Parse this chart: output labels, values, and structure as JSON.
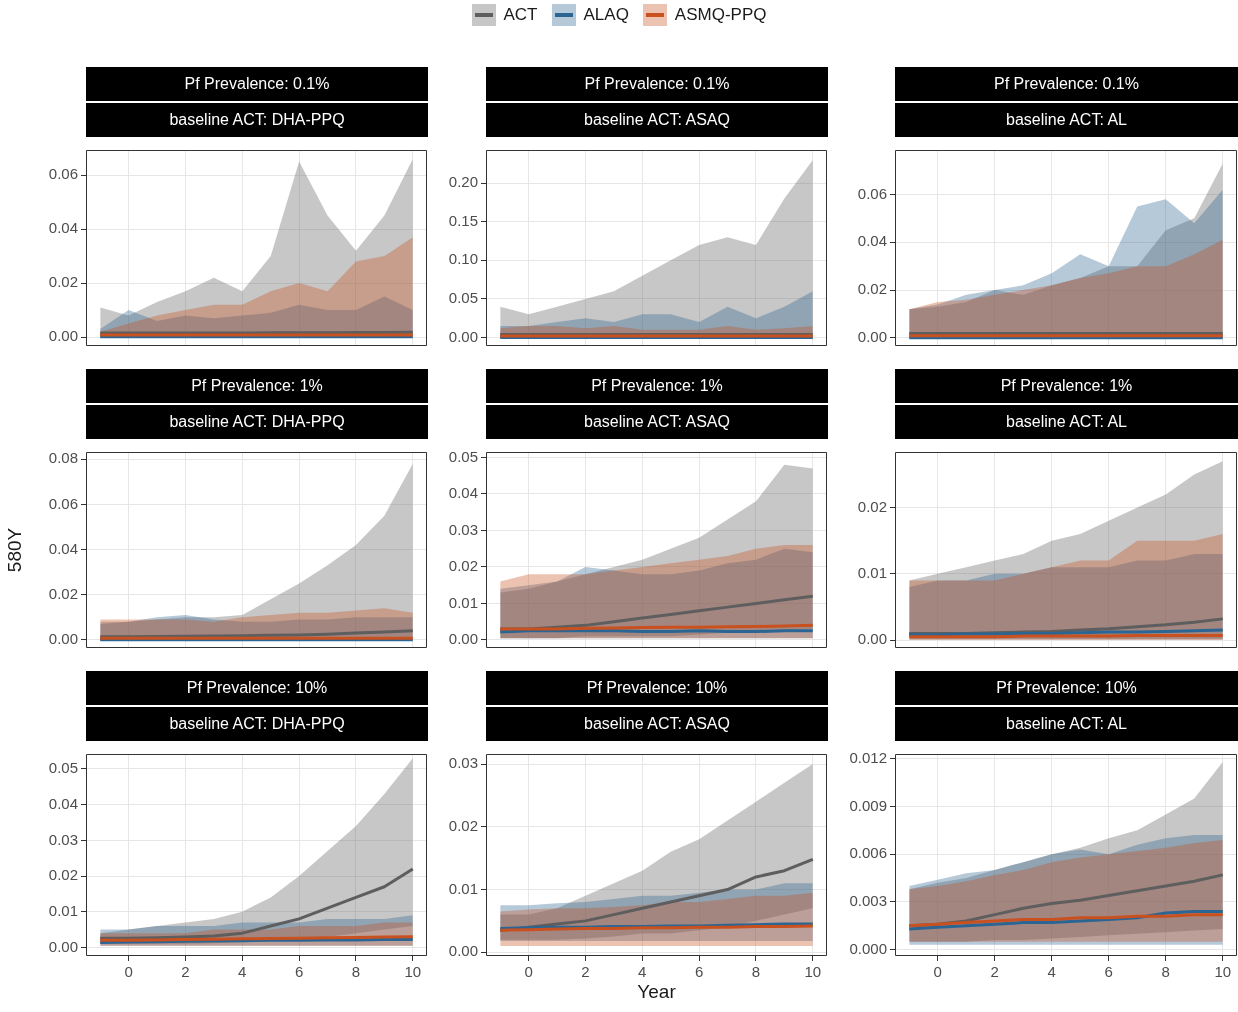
{
  "chart_data": [
    {
      "type": "line",
      "title": "Pf Prevalence: 0.1%",
      "subtitle": "baseline ACT: DHA-PPQ",
      "legend": "top",
      "marker": "none",
      "grid": true,
      "tick_labels": "y",
      "x": [
        -1,
        0,
        1,
        2,
        3,
        4,
        5,
        6,
        7,
        8,
        9,
        10
      ],
      "xlim": [
        -1.5,
        10.5
      ],
      "xticks": [
        0,
        2,
        4,
        6,
        8,
        10
      ],
      "ylim": [
        -0.0033,
        0.0693
      ],
      "yticks": [
        {
          "value": 0,
          "label": "0.00"
        },
        {
          "value": 0.02,
          "label": "0.02"
        },
        {
          "value": 0.04,
          "label": "0.04"
        },
        {
          "value": 0.06,
          "label": "0.06"
        }
      ],
      "series": [
        {
          "name": "ACT",
          "color": "#5e5e5e",
          "values": [
            0.0015,
            0.0015,
            0.0015,
            0.0015,
            0.0015,
            0.0015,
            0.0016,
            0.0016,
            0.0016,
            0.0017,
            0.0017,
            0.0018
          ],
          "lower": [
            0,
            0,
            0,
            0,
            0,
            0,
            0,
            0,
            0,
            0,
            0,
            0
          ],
          "upper": [
            0.011,
            0.008,
            0.013,
            0.017,
            0.022,
            0.017,
            0.03,
            0.065,
            0.045,
            0.032,
            0.045,
            0.066
          ]
        },
        {
          "name": "ALAQ",
          "color": "#2b6593",
          "values": [
            0.0001,
            0.0001,
            0.0001,
            0.0001,
            0.0001,
            0.0001,
            0.0001,
            0.0001,
            0.0001,
            0.0001,
            0.0001,
            0.0001
          ],
          "lower": [
            0,
            0,
            0,
            0,
            0,
            0,
            0,
            0,
            0,
            0,
            0,
            0
          ],
          "upper": [
            0.003,
            0.01,
            0.006,
            0.008,
            0.007,
            0.008,
            0.009,
            0.012,
            0.01,
            0.01,
            0.015,
            0.01
          ]
        },
        {
          "name": "ASMQ-PPQ",
          "color": "#c9501f",
          "values": [
            0.0008,
            0.0008,
            0.0008,
            0.0008,
            0.0008,
            0.0008,
            0.0008,
            0.0008,
            0.0008,
            0.0008,
            0.0008,
            0.0008
          ],
          "lower": [
            0,
            0,
            0,
            0,
            0,
            0,
            0,
            0,
            0,
            0,
            0,
            0
          ],
          "upper": [
            0.002,
            0.005,
            0.008,
            0.01,
            0.012,
            0.012,
            0.017,
            0.02,
            0.017,
            0.028,
            0.03,
            0.037
          ]
        }
      ]
    },
    {
      "type": "line",
      "title": "Pf Prevalence: 0.1%",
      "subtitle": "baseline ACT: ASAQ",
      "marker": "none",
      "grid": true,
      "tick_labels": "y",
      "x": [
        -1,
        0,
        1,
        2,
        3,
        4,
        5,
        6,
        7,
        8,
        9,
        10
      ],
      "xlim": [
        -1.5,
        10.5
      ],
      "xticks": [
        0,
        2,
        4,
        6,
        8,
        10
      ],
      "ylim": [
        -0.011,
        0.243
      ],
      "yticks": [
        {
          "value": 0,
          "label": "0.00"
        },
        {
          "value": 0.05,
          "label": "0.05"
        },
        {
          "value": 0.1,
          "label": "0.10"
        },
        {
          "value": 0.15,
          "label": "0.15"
        },
        {
          "value": 0.2,
          "label": "0.20"
        }
      ],
      "series": [
        {
          "name": "ACT",
          "color": "#5e5e5e",
          "values": [
            0.004,
            0.004,
            0.004,
            0.004,
            0.004,
            0.004,
            0.004,
            0.004,
            0.004,
            0.004,
            0.004,
            0.004
          ],
          "lower": [
            0,
            0,
            0,
            0,
            0,
            0,
            0,
            0,
            0,
            0,
            0,
            0
          ],
          "upper": [
            0.04,
            0.03,
            0.04,
            0.05,
            0.06,
            0.08,
            0.1,
            0.12,
            0.13,
            0.12,
            0.18,
            0.23
          ]
        },
        {
          "name": "ALAQ",
          "color": "#2b6593",
          "values": [
            0,
            0,
            0,
            0,
            0,
            0,
            0,
            0,
            0,
            0,
            0,
            0
          ],
          "lower": [
            0,
            0,
            0,
            0,
            0,
            0,
            0,
            0,
            0,
            0,
            0,
            0
          ],
          "upper": [
            0.015,
            0.015,
            0.02,
            0.025,
            0.02,
            0.03,
            0.03,
            0.02,
            0.04,
            0.025,
            0.04,
            0.06
          ]
        },
        {
          "name": "ASMQ-PPQ",
          "color": "#c9501f",
          "values": [
            0.002,
            0.002,
            0.002,
            0.002,
            0.002,
            0.002,
            0.002,
            0.002,
            0.002,
            0.002,
            0.002,
            0.002
          ],
          "lower": [
            0,
            0,
            0,
            0,
            0,
            0,
            0,
            0,
            0,
            0,
            0,
            0
          ],
          "upper": [
            0.012,
            0.015,
            0.015,
            0.012,
            0.015,
            0.01,
            0.01,
            0.01,
            0.015,
            0.01,
            0.012,
            0.015
          ]
        }
      ]
    },
    {
      "type": "line",
      "title": "Pf Prevalence: 0.1%",
      "subtitle": "baseline ACT: AL",
      "marker": "none",
      "grid": true,
      "tick_labels": "y",
      "x": [
        -1,
        0,
        1,
        2,
        3,
        4,
        5,
        6,
        7,
        8,
        9,
        10
      ],
      "xlim": [
        -1.5,
        10.5
      ],
      "xticks": [
        0,
        2,
        4,
        6,
        8,
        10
      ],
      "ylim": [
        -0.0034,
        0.0786
      ],
      "yticks": [
        {
          "value": 0,
          "label": "0.00"
        },
        {
          "value": 0.02,
          "label": "0.02"
        },
        {
          "value": 0.04,
          "label": "0.04"
        },
        {
          "value": 0.06,
          "label": "0.06"
        }
      ],
      "series": [
        {
          "name": "ACT",
          "color": "#5e5e5e",
          "values": [
            0.0018,
            0.0018,
            0.0018,
            0.0018,
            0.0018,
            0.0018,
            0.0018,
            0.0018,
            0.0018,
            0.0018,
            0.0018,
            0.0018
          ],
          "lower": [
            0,
            0,
            0,
            0,
            0,
            0,
            0,
            0,
            0,
            0,
            0,
            0
          ],
          "upper": [
            0.012,
            0.013,
            0.015,
            0.02,
            0.018,
            0.022,
            0.025,
            0.03,
            0.03,
            0.045,
            0.05,
            0.073
          ]
        },
        {
          "name": "ALAQ",
          "color": "#2b6593",
          "values": [
            0.0001,
            0.0001,
            0.0001,
            0.0001,
            0.0001,
            0.0001,
            0.0001,
            0.0001,
            0.0001,
            0.0001,
            0.0001,
            0.0001
          ],
          "lower": [
            0,
            0,
            0,
            0,
            0,
            0,
            0,
            0,
            0,
            0,
            0,
            0
          ],
          "upper": [
            0.012,
            0.014,
            0.018,
            0.02,
            0.022,
            0.027,
            0.035,
            0.03,
            0.055,
            0.058,
            0.048,
            0.062
          ]
        },
        {
          "name": "ASMQ-PPQ",
          "color": "#c9501f",
          "values": [
            0.0009,
            0.0009,
            0.0009,
            0.0009,
            0.0009,
            0.0009,
            0.0009,
            0.0009,
            0.0009,
            0.0009,
            0.0009,
            0.0009
          ],
          "lower": [
            0,
            0,
            0,
            0,
            0,
            0,
            0,
            0,
            0,
            0,
            0,
            0
          ],
          "upper": [
            0.012,
            0.015,
            0.016,
            0.018,
            0.02,
            0.022,
            0.025,
            0.027,
            0.03,
            0.03,
            0.035,
            0.041
          ]
        }
      ]
    },
    {
      "type": "line",
      "title": "Pf Prevalence: 1%",
      "subtitle": "baseline ACT: DHA-PPQ",
      "ylabel": "580Y",
      "marker": "none",
      "grid": true,
      "tick_labels": "y",
      "x": [
        -1,
        0,
        1,
        2,
        3,
        4,
        5,
        6,
        7,
        8,
        9,
        10
      ],
      "xlim": [
        -1.5,
        10.5
      ],
      "xticks": [
        0,
        2,
        4,
        6,
        8,
        10
      ],
      "ylim": [
        -0.0036,
        0.0832
      ],
      "yticks": [
        {
          "value": 0,
          "label": "0.00"
        },
        {
          "value": 0.02,
          "label": "0.02"
        },
        {
          "value": 0.04,
          "label": "0.04"
        },
        {
          "value": 0.06,
          "label": "0.06"
        },
        {
          "value": 0.08,
          "label": "0.08"
        }
      ],
      "series": [
        {
          "name": "ACT",
          "color": "#5e5e5e",
          "values": [
            0.0014,
            0.0014,
            0.0015,
            0.0016,
            0.0017,
            0.0018,
            0.002,
            0.0022,
            0.0025,
            0.003,
            0.0035,
            0.004
          ],
          "lower": [
            0,
            0,
            0,
            0,
            0,
            0,
            0,
            0,
            0,
            0,
            0,
            0
          ],
          "upper": [
            0.008,
            0.008,
            0.009,
            0.01,
            0.01,
            0.011,
            0.018,
            0.025,
            0.033,
            0.042,
            0.055,
            0.078
          ]
        },
        {
          "name": "ALAQ",
          "color": "#2b6593",
          "values": [
            0,
            0,
            0,
            0,
            0,
            0,
            0,
            0,
            0,
            0,
            0,
            0
          ],
          "lower": [
            0,
            0,
            0,
            0,
            0,
            0,
            0,
            0,
            0,
            0,
            0,
            0
          ],
          "upper": [
            0.007,
            0.008,
            0.01,
            0.011,
            0.009,
            0.008,
            0.008,
            0.009,
            0.009,
            0.01,
            0.01,
            0.01
          ]
        },
        {
          "name": "ASMQ-PPQ",
          "color": "#c9501f",
          "values": [
            0.0007,
            0.0007,
            0.0007,
            0.0007,
            0.0007,
            0.0007,
            0.0007,
            0.0007,
            0.0007,
            0.0007,
            0.0007,
            0.0007
          ],
          "lower": [
            0,
            0,
            0,
            0,
            0,
            0,
            0,
            0,
            0,
            0,
            0,
            0
          ],
          "upper": [
            0.009,
            0.009,
            0.009,
            0.009,
            0.008,
            0.01,
            0.011,
            0.012,
            0.012,
            0.013,
            0.014,
            0.012
          ]
        }
      ]
    },
    {
      "type": "line",
      "title": "Pf Prevalence: 1%",
      "subtitle": "baseline ACT: ASAQ",
      "marker": "none",
      "grid": true,
      "tick_labels": "y",
      "x": [
        -1,
        0,
        1,
        2,
        3,
        4,
        5,
        6,
        7,
        8,
        9,
        10
      ],
      "xlim": [
        -1.5,
        10.5
      ],
      "xticks": [
        0,
        2,
        4,
        6,
        8,
        10
      ],
      "ylim": [
        -0.0022,
        0.0515
      ],
      "yticks": [
        {
          "value": 0,
          "label": "0.00"
        },
        {
          "value": 0.01,
          "label": "0.01"
        },
        {
          "value": 0.02,
          "label": "0.02"
        },
        {
          "value": 0.03,
          "label": "0.03"
        },
        {
          "value": 0.04,
          "label": "0.04"
        },
        {
          "value": 0.05,
          "label": "0.05"
        }
      ],
      "series": [
        {
          "name": "ACT",
          "color": "#5e5e5e",
          "values": [
            0.003,
            0.003,
            0.0035,
            0.004,
            0.005,
            0.006,
            0.007,
            0.008,
            0.009,
            0.01,
            0.011,
            0.012
          ],
          "lower": [
            0.0005,
            0.0005,
            0.0005,
            0.001,
            0.001,
            0.001,
            0.001,
            0.0015,
            0.002,
            0.002,
            0.0025,
            0.003
          ],
          "upper": [
            0.013,
            0.014,
            0.016,
            0.018,
            0.02,
            0.022,
            0.025,
            0.028,
            0.033,
            0.038,
            0.048,
            0.047
          ]
        },
        {
          "name": "ALAQ",
          "color": "#2b6593",
          "values": [
            0.0022,
            0.0025,
            0.0025,
            0.0025,
            0.0025,
            0.0023,
            0.0023,
            0.0025,
            0.0023,
            0.0023,
            0.0025,
            0.0025
          ],
          "lower": [
            0.0005,
            0.0005,
            0.0005,
            0.0005,
            0.0005,
            0.0005,
            0.0005,
            0.0005,
            0.0005,
            0.0005,
            0.0005,
            0.0005
          ],
          "upper": [
            0.014,
            0.015,
            0.016,
            0.02,
            0.019,
            0.018,
            0.018,
            0.019,
            0.021,
            0.022,
            0.025,
            0.024
          ]
        },
        {
          "name": "ASMQ-PPQ",
          "color": "#c9501f",
          "values": [
            0.003,
            0.003,
            0.003,
            0.0032,
            0.0033,
            0.0034,
            0.0035,
            0.0035,
            0.0036,
            0.0037,
            0.0038,
            0.004
          ],
          "lower": [
            0.0005,
            0.0005,
            0.0005,
            0.0005,
            0.0005,
            0.0005,
            0.0005,
            0.0005,
            0.0005,
            0.0005,
            0.0005,
            0.0005
          ],
          "upper": [
            0.016,
            0.018,
            0.018,
            0.018,
            0.019,
            0.02,
            0.021,
            0.022,
            0.023,
            0.025,
            0.026,
            0.026
          ]
        }
      ]
    },
    {
      "type": "line",
      "title": "Pf Prevalence: 1%",
      "subtitle": "baseline ACT: AL",
      "marker": "none",
      "grid": true,
      "tick_labels": "y",
      "x": [
        -1,
        0,
        1,
        2,
        3,
        4,
        5,
        6,
        7,
        8,
        9,
        10
      ],
      "xlim": [
        -1.5,
        10.5
      ],
      "xticks": [
        0,
        2,
        4,
        6,
        8,
        10
      ],
      "ylim": [
        -0.0012,
        0.0284
      ],
      "yticks": [
        {
          "value": 0,
          "label": "0.00"
        },
        {
          "value": 0.01,
          "label": "0.01"
        },
        {
          "value": 0.02,
          "label": "0.02"
        }
      ],
      "series": [
        {
          "name": "ACT",
          "color": "#5e5e5e",
          "values": [
            0.001,
            0.001,
            0.001,
            0.0011,
            0.0012,
            0.0013,
            0.0015,
            0.0017,
            0.002,
            0.0023,
            0.0027,
            0.0032
          ],
          "lower": [
            0.0002,
            0.0002,
            0.0002,
            0.0002,
            0.0002,
            0.0002,
            0.0002,
            0.0002,
            0.0002,
            0.0002,
            0.0002,
            0.0002
          ],
          "upper": [
            0.009,
            0.01,
            0.011,
            0.012,
            0.013,
            0.015,
            0.016,
            0.018,
            0.02,
            0.022,
            0.025,
            0.027
          ]
        },
        {
          "name": "ALAQ",
          "color": "#2b6593",
          "values": [
            0.0008,
            0.0008,
            0.0009,
            0.0009,
            0.001,
            0.001,
            0.0011,
            0.0012,
            0.0012,
            0.0013,
            0.0014,
            0.0015
          ],
          "lower": [
            0.0001,
            0.0001,
            0.0001,
            0.0001,
            0.0001,
            0.0001,
            0.0001,
            0.0001,
            0.0001,
            0.0001,
            0.0001,
            0.0001
          ],
          "upper": [
            0.008,
            0.009,
            0.009,
            0.01,
            0.01,
            0.011,
            0.011,
            0.011,
            0.012,
            0.012,
            0.013,
            0.013
          ]
        },
        {
          "name": "ASMQ-PPQ",
          "color": "#c9501f",
          "values": [
            0.0005,
            0.0005,
            0.0005,
            0.0005,
            0.0006,
            0.0006,
            0.0006,
            0.0006,
            0.0007,
            0.0007,
            0.0007,
            0.0007
          ],
          "lower": [
            0,
            0,
            0,
            0,
            0,
            0,
            0,
            0,
            0,
            0,
            0,
            0
          ],
          "upper": [
            0.009,
            0.009,
            0.009,
            0.009,
            0.01,
            0.011,
            0.012,
            0.012,
            0.015,
            0.015,
            0.015,
            0.016
          ]
        }
      ]
    },
    {
      "type": "line",
      "title": "Pf Prevalence: 10%",
      "subtitle": "baseline ACT: DHA-PPQ",
      "marker": "none",
      "grid": true,
      "x": [
        -1,
        0,
        1,
        2,
        3,
        4,
        5,
        6,
        7,
        8,
        9,
        10
      ],
      "xlim": [
        -1.5,
        10.5
      ],
      "xticks": [
        0,
        2,
        4,
        6,
        8,
        10
      ],
      "ylim": [
        -0.0024,
        0.0542
      ],
      "yticks": [
        {
          "value": 0,
          "label": "0.00"
        },
        {
          "value": 0.01,
          "label": "0.01"
        },
        {
          "value": 0.02,
          "label": "0.02"
        },
        {
          "value": 0.03,
          "label": "0.03"
        },
        {
          "value": 0.04,
          "label": "0.04"
        },
        {
          "value": 0.05,
          "label": "0.05"
        }
      ],
      "series": [
        {
          "name": "ACT",
          "color": "#5e5e5e",
          "values": [
            0.0026,
            0.0026,
            0.0027,
            0.0029,
            0.0032,
            0.004,
            0.006,
            0.008,
            0.011,
            0.014,
            0.017,
            0.022
          ],
          "lower": [
            0.001,
            0.001,
            0.001,
            0.001,
            0.0012,
            0.0015,
            0.002,
            0.002,
            0.003,
            0.004,
            0.005,
            0.006
          ],
          "upper": [
            0.004,
            0.005,
            0.006,
            0.007,
            0.008,
            0.01,
            0.014,
            0.02,
            0.027,
            0.034,
            0.043,
            0.053
          ]
        },
        {
          "name": "ALAQ",
          "color": "#2b6593",
          "values": [
            0.0014,
            0.0015,
            0.0016,
            0.0017,
            0.0018,
            0.0019,
            0.002,
            0.002,
            0.0021,
            0.0021,
            0.0022,
            0.0022
          ],
          "lower": [
            0.0005,
            0.0005,
            0.0005,
            0.0005,
            0.0005,
            0.0005,
            0.0005,
            0.0005,
            0.0005,
            0.0005,
            0.0005,
            0.0005
          ],
          "upper": [
            0.005,
            0.005,
            0.006,
            0.006,
            0.006,
            0.007,
            0.007,
            0.007,
            0.008,
            0.008,
            0.008,
            0.009
          ]
        },
        {
          "name": "ASMQ-PPQ",
          "color": "#c9501f",
          "values": [
            0.002,
            0.002,
            0.0021,
            0.0022,
            0.0023,
            0.0024,
            0.0025,
            0.0026,
            0.0027,
            0.0028,
            0.0029,
            0.003
          ],
          "lower": [
            0.0005,
            0.0005,
            0.0005,
            0.0005,
            0.0005,
            0.0005,
            0.0005,
            0.0005,
            0.0005,
            0.0005,
            0.0005,
            0.0005
          ],
          "upper": [
            0.004,
            0.004,
            0.004,
            0.004,
            0.005,
            0.005,
            0.005,
            0.006,
            0.006,
            0.006,
            0.007,
            0.007
          ]
        }
      ]
    },
    {
      "type": "line",
      "title": "Pf Prevalence: 10%",
      "subtitle": "baseline ACT: ASAQ",
      "xlabel": "Year",
      "marker": "none",
      "grid": true,
      "x": [
        -1,
        0,
        1,
        2,
        3,
        4,
        5,
        6,
        7,
        8,
        9,
        10
      ],
      "xlim": [
        -1.5,
        10.5
      ],
      "xticks": [
        0,
        2,
        4,
        6,
        8,
        10
      ],
      "ylim": [
        -0.0006,
        0.0316
      ],
      "yticks": [
        {
          "value": 0,
          "label": "0.00"
        },
        {
          "value": 0.01,
          "label": "0.01"
        },
        {
          "value": 0.02,
          "label": "0.02"
        },
        {
          "value": 0.03,
          "label": "0.03"
        }
      ],
      "series": [
        {
          "name": "ACT",
          "color": "#5e5e5e",
          "values": [
            0.0035,
            0.004,
            0.0045,
            0.005,
            0.006,
            0.007,
            0.008,
            0.009,
            0.01,
            0.012,
            0.013,
            0.0148
          ],
          "lower": [
            0.002,
            0.002,
            0.002,
            0.0022,
            0.0025,
            0.003,
            0.003,
            0.0035,
            0.004,
            0.005,
            0.006,
            0.007
          ],
          "upper": [
            0.006,
            0.006,
            0.007,
            0.009,
            0.011,
            0.013,
            0.016,
            0.018,
            0.021,
            0.024,
            0.027,
            0.03
          ]
        },
        {
          "name": "ALAQ",
          "color": "#2b6593",
          "values": [
            0.0038,
            0.0039,
            0.004,
            0.004,
            0.0041,
            0.0041,
            0.0042,
            0.0042,
            0.0043,
            0.0044,
            0.0045,
            0.0045
          ],
          "lower": [
            0.0018,
            0.0018,
            0.0018,
            0.0018,
            0.0018,
            0.0018,
            0.0018,
            0.0018,
            0.0018,
            0.0018,
            0.0018,
            0.0018
          ],
          "upper": [
            0.0075,
            0.0075,
            0.0078,
            0.008,
            0.0085,
            0.009,
            0.009,
            0.0095,
            0.01,
            0.01,
            0.011,
            0.011
          ]
        },
        {
          "name": "ASMQ-PPQ",
          "color": "#c9501f",
          "values": [
            0.0035,
            0.0036,
            0.0037,
            0.0038,
            0.0038,
            0.0039,
            0.0039,
            0.004,
            0.004,
            0.0041,
            0.0041,
            0.0042
          ],
          "lower": [
            0.001,
            0.001,
            0.001,
            0.001,
            0.001,
            0.001,
            0.001,
            0.001,
            0.001,
            0.001,
            0.001,
            0.001
          ],
          "upper": [
            0.0065,
            0.0068,
            0.007,
            0.007,
            0.0072,
            0.0075,
            0.008,
            0.008,
            0.0085,
            0.009,
            0.009,
            0.0095
          ]
        }
      ]
    },
    {
      "type": "line",
      "title": "Pf Prevalence: 10%",
      "subtitle": "baseline ACT: AL",
      "marker": "none",
      "grid": true,
      "x": [
        -1,
        0,
        1,
        2,
        3,
        4,
        5,
        6,
        7,
        8,
        9,
        10
      ],
      "xlim": [
        -1.5,
        10.5
      ],
      "xticks": [
        0,
        2,
        4,
        6,
        8,
        10
      ],
      "ylim": [
        -0.0004,
        0.0123
      ],
      "yticks": [
        {
          "value": 0,
          "label": "0.000"
        },
        {
          "value": 0.003,
          "label": "0.003"
        },
        {
          "value": 0.006,
          "label": "0.006"
        },
        {
          "value": 0.009,
          "label": "0.009"
        },
        {
          "value": 0.012,
          "label": "0.012"
        }
      ],
      "series": [
        {
          "name": "ACT",
          "color": "#5e5e5e",
          "values": [
            0.0015,
            0.0016,
            0.0018,
            0.0022,
            0.0026,
            0.0029,
            0.0031,
            0.0034,
            0.0037,
            0.004,
            0.0043,
            0.0047
          ],
          "lower": [
            0.0005,
            0.0005,
            0.0005,
            0.0006,
            0.0006,
            0.0007,
            0.0008,
            0.0009,
            0.001,
            0.0011,
            0.0012,
            0.0013
          ],
          "upper": [
            0.0038,
            0.0042,
            0.0045,
            0.005,
            0.0055,
            0.006,
            0.0064,
            0.007,
            0.0075,
            0.0085,
            0.0095,
            0.0118
          ]
        },
        {
          "name": "ALAQ",
          "color": "#2b6593",
          "values": [
            0.0013,
            0.0014,
            0.0015,
            0.0016,
            0.0017,
            0.0017,
            0.0018,
            0.0019,
            0.002,
            0.0023,
            0.0024,
            0.0024
          ],
          "lower": [
            0.0003,
            0.0003,
            0.0003,
            0.0003,
            0.0003,
            0.0003,
            0.0003,
            0.0003,
            0.0003,
            0.0003,
            0.0003,
            0.0003
          ],
          "upper": [
            0.004,
            0.0044,
            0.0048,
            0.005,
            0.0055,
            0.006,
            0.0063,
            0.006,
            0.0066,
            0.007,
            0.0072,
            0.0072
          ]
        },
        {
          "name": "ASMQ-PPQ",
          "color": "#c9501f",
          "values": [
            0.0015,
            0.0016,
            0.0017,
            0.0018,
            0.0019,
            0.0019,
            0.002,
            0.002,
            0.0021,
            0.0021,
            0.0022,
            0.0022
          ],
          "lower": [
            0.0005,
            0.0005,
            0.0005,
            0.0005,
            0.0005,
            0.0005,
            0.0005,
            0.0005,
            0.0005,
            0.0005,
            0.0005,
            0.0005
          ],
          "upper": [
            0.0038,
            0.004,
            0.0043,
            0.0047,
            0.005,
            0.0055,
            0.0058,
            0.006,
            0.0062,
            0.0064,
            0.0067,
            0.0069
          ]
        }
      ]
    }
  ]
}
